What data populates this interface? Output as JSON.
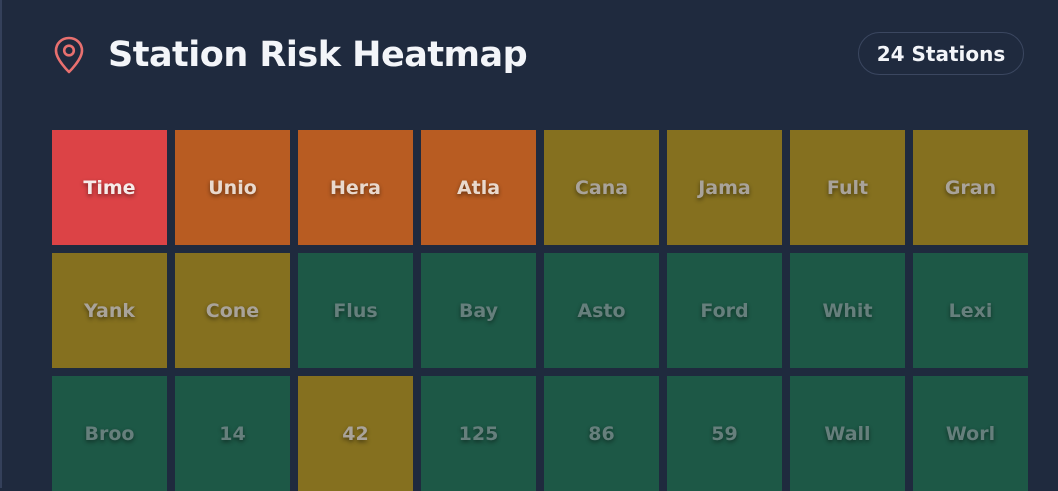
{
  "header": {
    "title": "Station Risk Heatmap",
    "badge": "24 Stations",
    "icon": "map-pin-icon"
  },
  "colors": {
    "background": "#1f2a3e",
    "pin": "#e8706f",
    "critical": "#dc4346",
    "high": "#b85c22",
    "medium": "#85701f",
    "low": "#1d5846"
  },
  "chart_data": {
    "type": "heatmap",
    "title": "Station Risk Heatmap",
    "rows": 3,
    "columns": 8,
    "cells": [
      {
        "label": "Time",
        "level": "critical"
      },
      {
        "label": "Unio",
        "level": "high"
      },
      {
        "label": "Hera",
        "level": "high"
      },
      {
        "label": "Atla",
        "level": "high"
      },
      {
        "label": "Cana",
        "level": "medium"
      },
      {
        "label": "Jama",
        "level": "medium"
      },
      {
        "label": "Fult",
        "level": "medium"
      },
      {
        "label": "Gran",
        "level": "medium"
      },
      {
        "label": "Yank",
        "level": "medium"
      },
      {
        "label": "Cone",
        "level": "medium"
      },
      {
        "label": "Flus",
        "level": "low"
      },
      {
        "label": "Bay",
        "level": "low"
      },
      {
        "label": "Asto",
        "level": "low"
      },
      {
        "label": "Ford",
        "level": "low"
      },
      {
        "label": "Whit",
        "level": "low"
      },
      {
        "label": "Lexi",
        "level": "low"
      },
      {
        "label": "Broo",
        "level": "low"
      },
      {
        "label": "14",
        "level": "low"
      },
      {
        "label": "42",
        "level": "medium"
      },
      {
        "label": "125",
        "level": "low"
      },
      {
        "label": "86",
        "level": "low"
      },
      {
        "label": "59",
        "level": "low"
      },
      {
        "label": "Wall",
        "level": "low"
      },
      {
        "label": "Worl",
        "level": "low"
      }
    ]
  }
}
